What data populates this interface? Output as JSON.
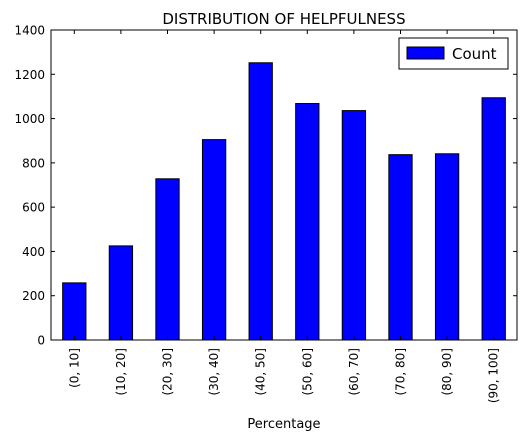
{
  "chart_data": {
    "type": "bar",
    "title": "DISTRIBUTION OF HELPFULNESS",
    "xlabel": "Percentage",
    "ylabel": "",
    "categories": [
      "(0, 10]",
      "(10, 20]",
      "(20, 30]",
      "(30, 40]",
      "(40, 50]",
      "(50, 60]",
      "(60, 70]",
      "(70, 80]",
      "(80, 90]",
      "(90, 100]"
    ],
    "series": [
      {
        "name": "Count",
        "values": [
          258,
          425,
          728,
          905,
          1252,
          1068,
          1036,
          837,
          841,
          1094
        ],
        "color": "#0000ff"
      }
    ],
    "ylim": [
      0,
      1400
    ],
    "yticks": [
      0,
      200,
      400,
      600,
      800,
      1000,
      1200,
      1400
    ],
    "grid": false,
    "legend_position": "top-right"
  }
}
